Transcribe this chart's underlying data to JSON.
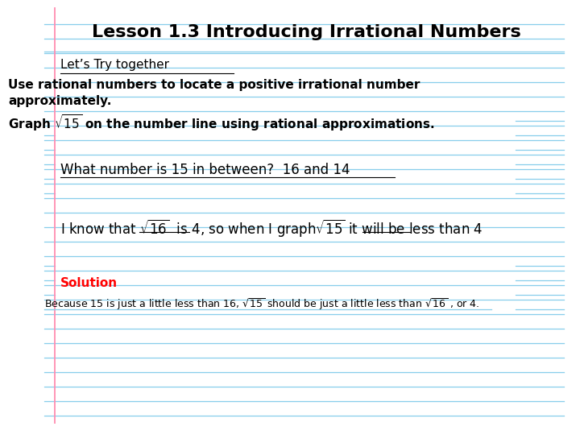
{
  "title": "Lesson 1.3 Introducing Irrational Numbers",
  "background_color": "#ffffff",
  "line_color": "#87CEEB",
  "pink_line_color": "#ff8cb0",
  "bold_text_1a": "Use rational numbers to locate a positive irrational number",
  "bold_text_1b": "approximately.",
  "bold_text_2": "Graph $\\sqrt{15}$ on the number line using rational approximations.",
  "handwrite_1": "What number is 15 in between?  16 and 14",
  "handwrite_2a": "I know that $\\sqrt{16}$  is 4, so when I graph",
  "handwrite_2b": "$\\sqrt{15}$ it will be less than 4",
  "lets_try": "Let’s Try together",
  "solution_label": "Solution",
  "solution_text": "Because 15 is just a little less than 16, $\\sqrt{15}$ should be just a little less than $\\sqrt{16}$ , or 4.",
  "title_fontsize": 16,
  "body_fontsize": 11,
  "handwrite_fontsize": 12,
  "small_fontsize": 9
}
